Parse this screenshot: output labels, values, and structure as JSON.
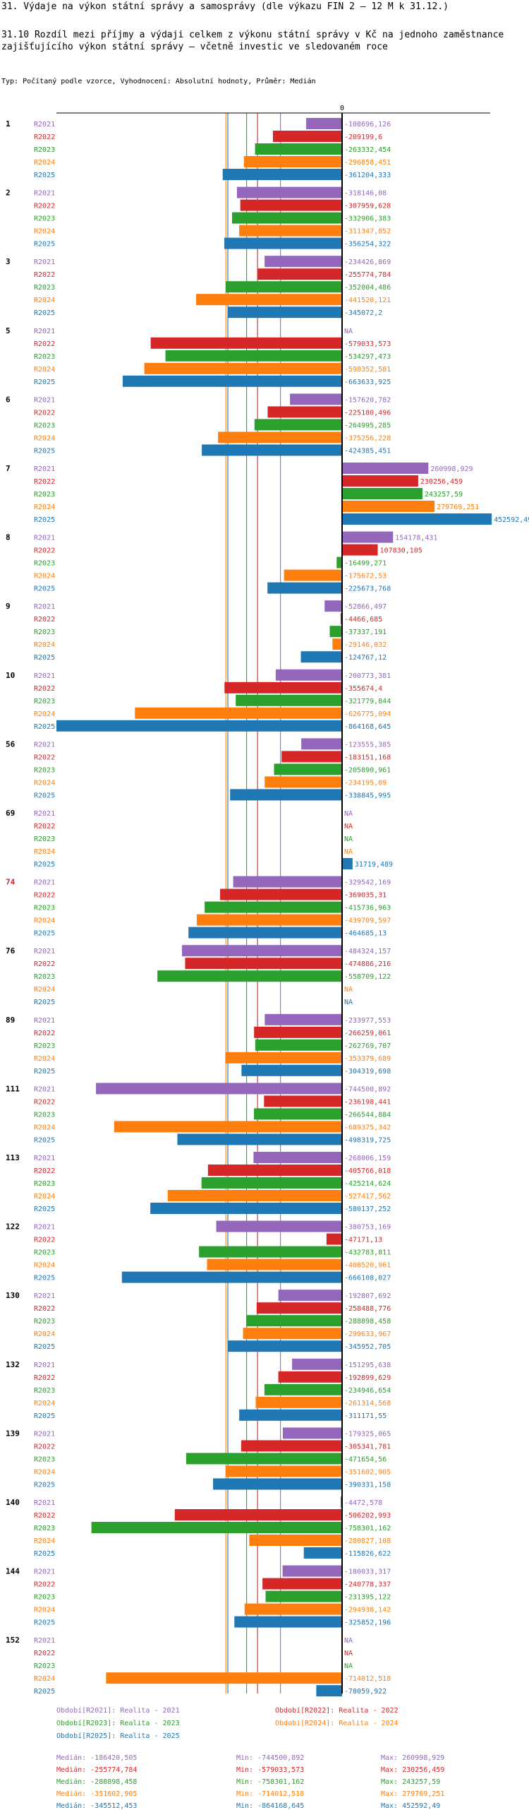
{
  "header": {
    "title": "31. Výdaje na výkon státní správy a samosprávy (dle výkazu FIN 2 – 12 M k 31.12.)",
    "subtitle": "31.10 Rozdíl mezi  příjmy a výdaji celkem z výkonu státní správy v Kč na jednoho zaměstnance zajišťujícího výkon státní správy – včetně investic ve sledovaném roce",
    "type_line": "Typ: Počítaný podle vzorce, Vyhodnocení: Absolutní hodnoty, Průměr: Medián"
  },
  "colors": {
    "R2021": "#9467bd",
    "R2022": "#d62728",
    "R2023": "#2ca02c",
    "R2024": "#ff7f0e",
    "R2025": "#1f77b4",
    "axis": "#000000",
    "rowlabel_highlight": "#d62728"
  },
  "chart_data": {
    "type": "bar",
    "orientation": "horizontal",
    "zero_label": "0",
    "series_names": [
      "R2021",
      "R2022",
      "R2023",
      "R2024",
      "R2025"
    ],
    "na_label": "NA",
    "highlight_category": "74",
    "categories": [
      "1",
      "2",
      "3",
      "5",
      "6",
      "7",
      "8",
      "9",
      "10",
      "56",
      "69",
      "74",
      "76",
      "89",
      "111",
      "113",
      "122",
      "130",
      "132",
      "139",
      "140",
      "144",
      "152"
    ],
    "groups": [
      {
        "category": "1",
        "values": [
          -108696.126,
          -209199.6,
          -263332.454,
          -296858.451,
          -361204.333
        ],
        "labels": [
          "-108696,126",
          "-209199,6",
          "-263332,454",
          "-296858,451",
          "-361204,333"
        ]
      },
      {
        "category": "2",
        "values": [
          -318146.08,
          -307959.628,
          -332906.383,
          -311347.852,
          -356254.322
        ],
        "labels": [
          "-318146,08",
          "-307959,628",
          "-332906,383",
          "-311347,852",
          "-356254,322"
        ]
      },
      {
        "category": "3",
        "values": [
          -234426.869,
          -255774.784,
          -352004.486,
          -441520.121,
          -345072.2
        ],
        "labels": [
          "-234426,869",
          "-255774,784",
          "-352004,486",
          "-441520,121",
          "-345072,2"
        ]
      },
      {
        "category": "5",
        "values": [
          null,
          -579033.573,
          -534297.473,
          -598352.581,
          -663633.925
        ],
        "labels": [
          "NA",
          "-579033,573",
          "-534297,473",
          "-598352,581",
          "-663633,925"
        ]
      },
      {
        "category": "6",
        "values": [
          -157620.782,
          -225180.496,
          -264995.285,
          -375256.228,
          -424385.451
        ],
        "labels": [
          "-157620,782",
          "-225180,496",
          "-264995,285",
          "-375256,228",
          "-424385,451"
        ]
      },
      {
        "category": "7",
        "values": [
          260998.929,
          230256.459,
          243257.59,
          279769.251,
          452592.49
        ],
        "labels": [
          "260998,929",
          "230256,459",
          "243257,59",
          "279769,251",
          "452592,49"
        ]
      },
      {
        "category": "8",
        "values": [
          154178.431,
          107830.105,
          -16499.271,
          -175672.53,
          -225673.768
        ],
        "labels": [
          "154178,431",
          "107830,105",
          "-16499,271",
          "-175672,53",
          "-225673,768"
        ]
      },
      {
        "category": "9",
        "values": [
          -52866.497,
          -4466.685,
          -37337.191,
          -29146.032,
          -124767.12
        ],
        "labels": [
          "-52866,497",
          "-4466,685",
          "-37337,191",
          "-29146,032",
          "-124767,12"
        ]
      },
      {
        "category": "10",
        "values": [
          -200773.381,
          -355674.4,
          -321779.844,
          -626775.094,
          -864168.645
        ],
        "labels": [
          "-200773,381",
          "-355674,4",
          "-321779,844",
          "-626775,094",
          "-864168,645"
        ]
      },
      {
        "category": "56",
        "values": [
          -123555.385,
          -183151.168,
          -205890.961,
          -234195.09,
          -338845.995
        ],
        "labels": [
          "-123555,385",
          "-183151,168",
          "-205890,961",
          "-234195,09",
          "-338845,995"
        ]
      },
      {
        "category": "69",
        "values": [
          null,
          null,
          null,
          null,
          31719.489
        ],
        "labels": [
          "NA",
          "NA",
          "NA",
          "NA",
          "31719,489"
        ]
      },
      {
        "category": "74",
        "values": [
          -329542.169,
          -369035.31,
          -415736.963,
          -439709.597,
          -464685.13
        ],
        "labels": [
          "-329542,169",
          "-369035,31",
          "-415736,963",
          "-439709,597",
          "-464685,13"
        ]
      },
      {
        "category": "76",
        "values": [
          -484324.157,
          -474886.216,
          -558709.122,
          null,
          null
        ],
        "labels": [
          "-484324,157",
          "-474886,216",
          "-558709,122",
          "NA",
          "NA"
        ]
      },
      {
        "category": "89",
        "values": [
          -233977.553,
          -266259.061,
          -262769.707,
          -353379.689,
          -304319.698
        ],
        "labels": [
          "-233977,553",
          "-266259,061",
          "-262769,707",
          "-353379,689",
          "-304319,698"
        ]
      },
      {
        "category": "111",
        "values": [
          -744500.892,
          -236198.441,
          -266544.884,
          -689375.342,
          -498319.725
        ],
        "labels": [
          "-744500,892",
          "-236198,441",
          "-266544,884",
          "-689375,342",
          "-498319,725"
        ]
      },
      {
        "category": "113",
        "values": [
          -268006.159,
          -405766.018,
          -425214.624,
          -527417.562,
          -580137.252
        ],
        "labels": [
          "-268006,159",
          "-405766,018",
          "-425214,624",
          "-527417,562",
          "-580137,252"
        ]
      },
      {
        "category": "122",
        "values": [
          -380753.169,
          -47171.13,
          -432783.811,
          -408520.961,
          -666108.027
        ],
        "labels": [
          "-380753,169",
          "-47171,13",
          "-432783,811",
          "-408520,961",
          "-666108,027"
        ]
      },
      {
        "category": "130",
        "values": [
          -192807.692,
          -258488.776,
          -288898.458,
          -299633.967,
          -345952.705
        ],
        "labels": [
          "-192807,692",
          "-258488,776",
          "-288898,458",
          "-299633,967",
          "-345952,705"
        ]
      },
      {
        "category": "132",
        "values": [
          -151295.638,
          -192899.629,
          -234946.654,
          -261314.568,
          -311171.55
        ],
        "labels": [
          "-151295,638",
          "-192899,629",
          "-234946,654",
          "-261314,568",
          "-311171,55"
        ]
      },
      {
        "category": "139",
        "values": [
          -179325.065,
          -305341.781,
          -471654.56,
          -351602.905,
          -390331.158
        ],
        "labels": [
          "-179325,065",
          "-305341,781",
          "-471654,56",
          "-351602,905",
          "-390331,158"
        ]
      },
      {
        "category": "140",
        "values": [
          -4472.578,
          -506202.993,
          -758301.162,
          -280827.108,
          -115826.622
        ],
        "labels": [
          "-4472,578",
          "-506202,993",
          "-758301,162",
          "-280827,108",
          "-115826,622"
        ]
      },
      {
        "category": "144",
        "values": [
          -180033.317,
          -240778.337,
          -231395.122,
          -294938.142,
          -325852.196
        ],
        "labels": [
          "-180033,317",
          "-240778,337",
          "-231395,122",
          "-294938,142",
          "-325852,196"
        ]
      },
      {
        "category": "152",
        "values": [
          null,
          null,
          null,
          -714012.518,
          -78059.922
        ],
        "labels": [
          "NA",
          "NA",
          "NA",
          "-714012,518",
          "-78059,922"
        ]
      }
    ],
    "medians": [
      -186420.505,
      -255774.784,
      -288898.458,
      -351602.905,
      -345512.453
    ],
    "xlim": [
      -864168.645,
      452592.49
    ]
  },
  "legend": {
    "entries": [
      "Období[R2021]: Realita - 2021",
      "Období[R2022]: Realita - 2022",
      "Období[R2023]: Realita - 2023",
      "Období[R2024]: Realita - 2024",
      "Období[R2025]: Realita - 2025"
    ]
  },
  "stats": {
    "rows": [
      {
        "median": "Medián: -186420,505",
        "min": "Min: -744500,892",
        "max": "Max: 260998,929"
      },
      {
        "median": "Medián: -255774,784",
        "min": "Min: -579033,573",
        "max": "Max: 230256,459"
      },
      {
        "median": "Medián: -288898,458",
        "min": "Min: -758301,162",
        "max": "Max: 243257,59"
      },
      {
        "median": "Medián: -351602,905",
        "min": "Min: -714012,518",
        "max": "Max: 279769,251"
      },
      {
        "median": "Medián: -345512,453",
        "min": "Min: -864168,645",
        "max": "Max: 452592,49"
      }
    ]
  }
}
